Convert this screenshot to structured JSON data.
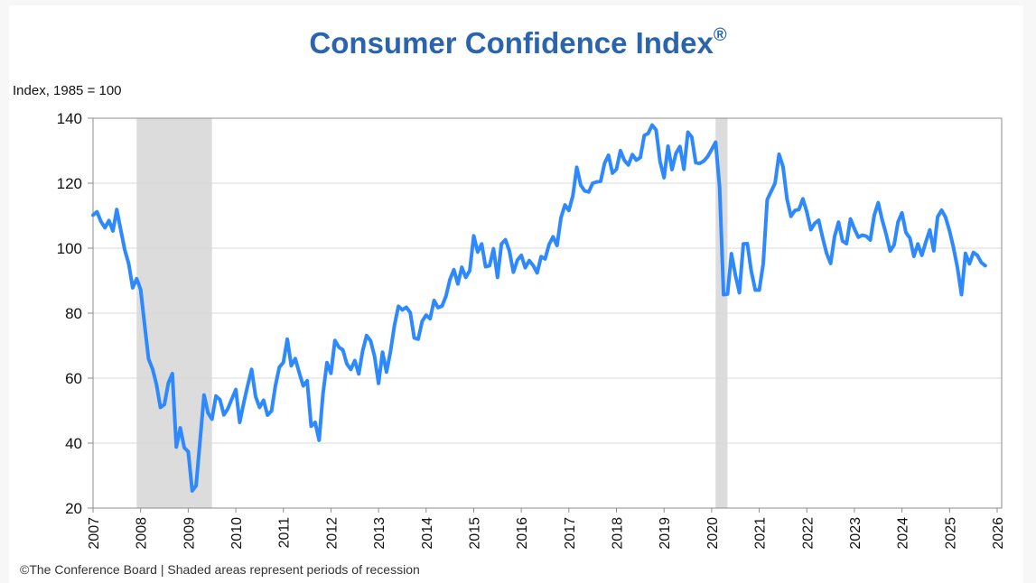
{
  "chart_data": {
    "type": "line",
    "title": "Consumer Confidence Index",
    "title_mark": "®",
    "ylabel": "Index, 1985 = 100",
    "xlabel": "",
    "ylim": [
      20,
      140
    ],
    "xlim": [
      2007,
      2026
    ],
    "y_ticks": [
      20,
      40,
      60,
      80,
      100,
      120,
      140
    ],
    "x_ticks": [
      "2007",
      "2008",
      "2009",
      "2010",
      "2011",
      "2012",
      "2013",
      "2014",
      "2015",
      "2016",
      "2017",
      "2018",
      "2019",
      "2020",
      "2021",
      "2022",
      "2023",
      "2024",
      "2025",
      "2026"
    ],
    "grid": true,
    "legend": "none",
    "line_color": "#2e89ff",
    "recession_color": "#dcdcdc",
    "recessions": [
      {
        "start": "2007-12",
        "end": "2009-06"
      },
      {
        "start": "2020-02",
        "end": "2020-04"
      }
    ],
    "series": [
      {
        "name": "Consumer Confidence Index",
        "start": "2007-01",
        "frequency": "monthly",
        "values": [
          110.2,
          111.2,
          108.2,
          106.3,
          108.5,
          105.3,
          111.9,
          105.6,
          99.5,
          95.2,
          87.8,
          90.6,
          87.3,
          76.4,
          65.9,
          62.8,
          58.1,
          51.0,
          51.9,
          58.5,
          61.4,
          38.8,
          44.7,
          38.6,
          37.4,
          25.3,
          26.9,
          40.8,
          54.8,
          49.3,
          47.4,
          54.5,
          53.4,
          48.7,
          50.6,
          53.6,
          56.5,
          46.4,
          52.3,
          57.7,
          62.7,
          54.3,
          51.0,
          53.2,
          48.6,
          49.9,
          57.8,
          63.4,
          64.8,
          72.0,
          63.8,
          66.0,
          61.7,
          57.6,
          59.2,
          45.2,
          46.4,
          40.9,
          55.2,
          64.8,
          61.5,
          71.6,
          69.5,
          68.7,
          64.4,
          62.7,
          65.4,
          61.3,
          68.4,
          73.1,
          71.5,
          66.7,
          58.4,
          68.0,
          61.9,
          68.1,
          76.2,
          82.1,
          81.0,
          81.8,
          80.2,
          72.4,
          72.0,
          77.5,
          79.4,
          78.3,
          83.9,
          81.7,
          82.2,
          85.2,
          90.3,
          93.4,
          89.0,
          94.1,
          91.0,
          93.1,
          103.8,
          98.8,
          101.3,
          94.3,
          94.6,
          99.8,
          91.0,
          101.3,
          102.6,
          99.1,
          92.6,
          96.3,
          97.8,
          94.0,
          96.2,
          94.7,
          92.4,
          97.4,
          96.7,
          101.1,
          103.5,
          100.8,
          109.4,
          113.3,
          111.6,
          116.1,
          124.9,
          119.4,
          117.6,
          117.3,
          120.0,
          120.4,
          120.6,
          126.2,
          128.6,
          123.1,
          124.3,
          130.0,
          127.0,
          125.6,
          128.8,
          127.1,
          127.9,
          134.7,
          135.3,
          137.9,
          136.4,
          126.6,
          121.7,
          131.4,
          124.2,
          129.2,
          131.3,
          124.3,
          135.7,
          134.2,
          126.3,
          126.1,
          126.8,
          128.2,
          130.4,
          132.6,
          118.8,
          85.7,
          85.9,
          98.3,
          91.7,
          86.3,
          101.3,
          101.4,
          92.9,
          87.1,
          87.1,
          95.2,
          114.9,
          117.5,
          120.0,
          128.9,
          125.1,
          115.2,
          109.8,
          111.6,
          111.9,
          115.2,
          111.1,
          105.7,
          107.6,
          108.6,
          103.2,
          98.4,
          95.3,
          103.6,
          108.0,
          102.2,
          101.4,
          109.0,
          106.0,
          103.4,
          104.0,
          103.7,
          102.5,
          110.1,
          114.0,
          108.7,
          104.3,
          99.1,
          101.0,
          108.0,
          110.9,
          104.8,
          103.1,
          97.5,
          101.3,
          97.8,
          101.9,
          105.6,
          99.2,
          109.6,
          111.7,
          109.5,
          105.3,
          100.1,
          93.9,
          85.7,
          98.4,
          95.2,
          98.7,
          97.8,
          95.6,
          94.6
        ]
      }
    ]
  },
  "footnote": "©The Conference Board  |  Shaded areas represent periods of recession"
}
